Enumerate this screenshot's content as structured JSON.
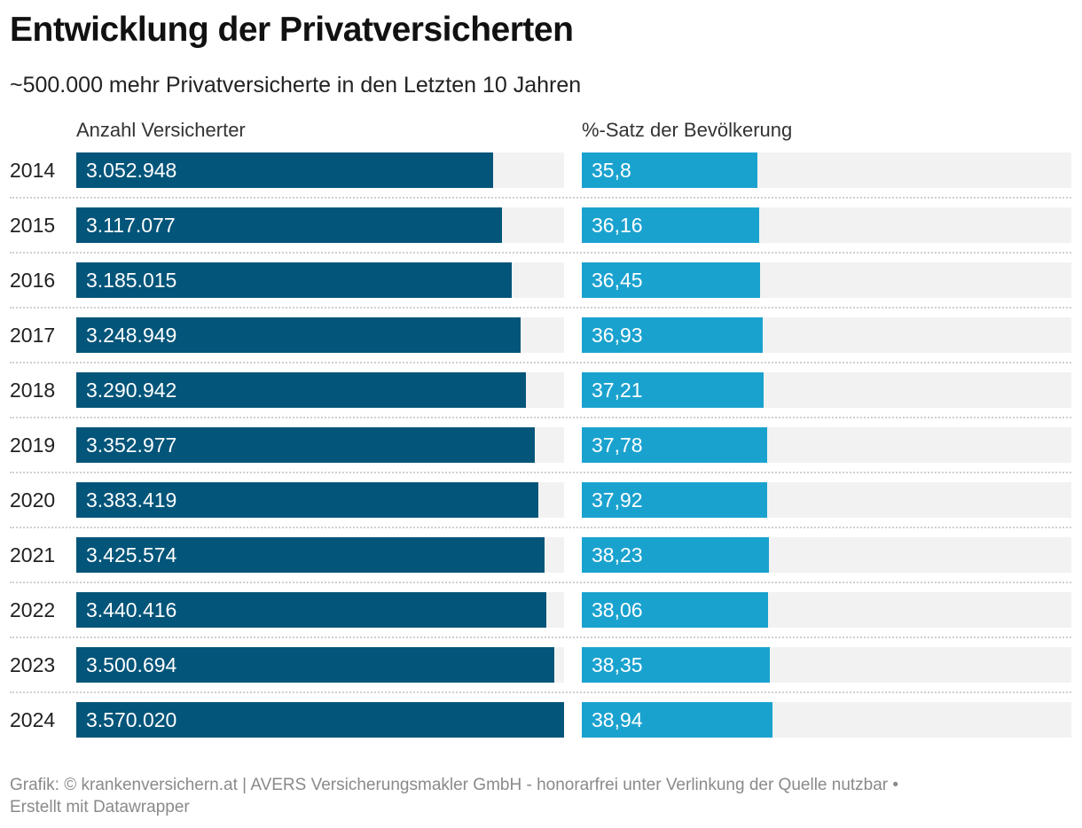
{
  "title": "Entwicklung der Privatversicherten",
  "subtitle": "~500.000 mehr Privatversicherte in den Letzten 10 Jahren",
  "footer": {
    "line1": "Grafik: © krankenversichern.at | AVERS Versicherungsmakler GmbH - honorarfrei unter Verlinkung der Quelle nutzbar •",
    "line2": "Erstellt mit Datawrapper"
  },
  "colors": {
    "series_a": "#03557a",
    "series_b": "#1aa2cf",
    "track": "#f2f2f2"
  },
  "chart_data": {
    "type": "bar",
    "orientation": "horizontal",
    "categories": [
      "2014",
      "2015",
      "2016",
      "2017",
      "2018",
      "2019",
      "2020",
      "2021",
      "2022",
      "2023",
      "2024"
    ],
    "series": [
      {
        "name": "Anzahl Versicherter",
        "values": [
          3052948,
          3117077,
          3185015,
          3248949,
          3290942,
          3352977,
          3383419,
          3425574,
          3440416,
          3500694,
          3570020
        ],
        "labels": [
          "3.052.948",
          "3.117.077",
          "3.185.015",
          "3.248.949",
          "3.290.942",
          "3.352.977",
          "3.383.419",
          "3.425.574",
          "3.440.416",
          "3.500.694",
          "3.570.020"
        ],
        "xlim": [
          0,
          3570020
        ]
      },
      {
        "name": "%-Satz der Bevölkerung",
        "values": [
          35.8,
          36.16,
          36.45,
          36.93,
          37.21,
          37.78,
          37.92,
          38.23,
          38.06,
          38.35,
          38.94
        ],
        "labels": [
          "35,8",
          "36,16",
          "36,45",
          "36,93",
          "37,21",
          "37,78",
          "37,92",
          "38,23",
          "38,06",
          "38,35",
          "38,94"
        ],
        "xlim": [
          0,
          100
        ]
      }
    ]
  }
}
